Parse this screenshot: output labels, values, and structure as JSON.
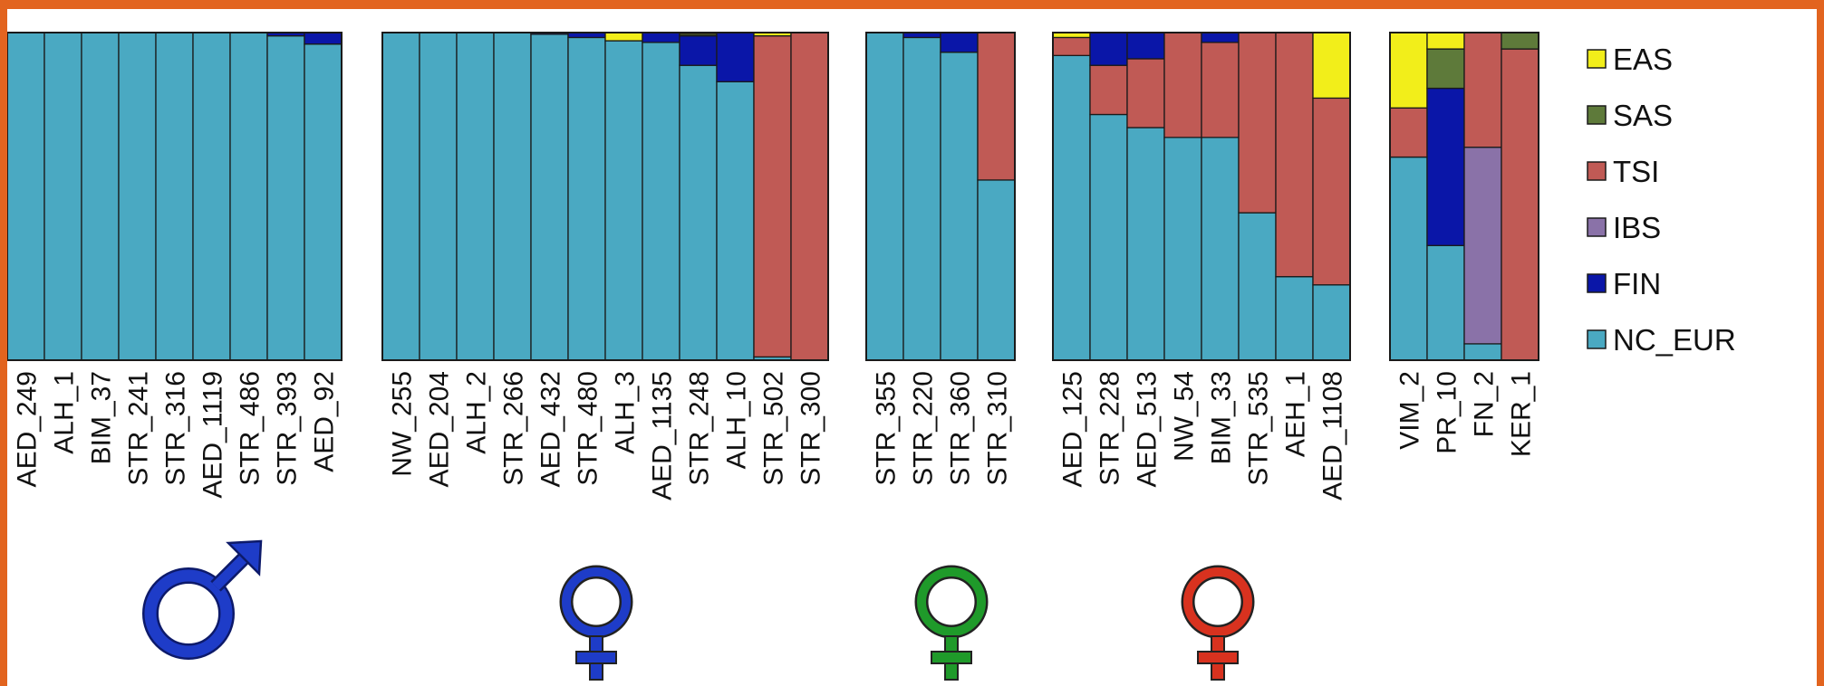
{
  "chart_data": {
    "type": "bar",
    "stacked": true,
    "normalized": true,
    "ylim": [
      0,
      1
    ],
    "grid": false,
    "legend_position": "right",
    "components": [
      {
        "name": "EAS",
        "color": "#f2ee1a"
      },
      {
        "name": "SAS",
        "color": "#5e7a3a"
      },
      {
        "name": "TSI",
        "color": "#c05a55"
      },
      {
        "name": "IBS",
        "color": "#8a72a8"
      },
      {
        "name": "FIN",
        "color": "#0a16a8"
      },
      {
        "name": "NC_EUR",
        "color": "#4aa9c2"
      }
    ],
    "stack_order": [
      "NC_EUR",
      "IBS",
      "TSI",
      "FIN",
      "SAS",
      "EAS"
    ],
    "panels": [
      {
        "symbol": "male",
        "symbol_color": "#1e3cc8",
        "samples": [
          {
            "label": "AED_249",
            "NC_EUR": 1.0
          },
          {
            "label": "ALH_1",
            "NC_EUR": 1.0
          },
          {
            "label": "BIM_37",
            "NC_EUR": 1.0
          },
          {
            "label": "STR_241",
            "NC_EUR": 1.0
          },
          {
            "label": "STR_316",
            "NC_EUR": 1.0
          },
          {
            "label": "AED_1119",
            "NC_EUR": 1.0
          },
          {
            "label": "STR_486",
            "NC_EUR": 1.0
          },
          {
            "label": "STR_393",
            "NC_EUR": 0.99,
            "FIN": 0.01
          },
          {
            "label": "AED_92",
            "NC_EUR": 0.965,
            "FIN": 0.035
          }
        ]
      },
      {
        "symbol": "female",
        "symbol_color": "#1e3cc8",
        "samples": [
          {
            "label": "NW_255",
            "NC_EUR": 1.0
          },
          {
            "label": "AED_204",
            "NC_EUR": 1.0
          },
          {
            "label": "ALH_2",
            "NC_EUR": 1.0
          },
          {
            "label": "STR_266",
            "NC_EUR": 1.0
          },
          {
            "label": "AED_432",
            "NC_EUR": 0.995,
            "FIN": 0.005
          },
          {
            "label": "STR_480",
            "NC_EUR": 0.985,
            "FIN": 0.015
          },
          {
            "label": "ALH_3",
            "NC_EUR": 0.975,
            "EAS": 0.025
          },
          {
            "label": "AED_1135",
            "NC_EUR": 0.97,
            "FIN": 0.03
          },
          {
            "label": "STR_248",
            "NC_EUR": 0.9,
            "FIN": 0.09,
            "SAS": 0.005,
            "EAS": 0.005
          },
          {
            "label": "ALH_10",
            "NC_EUR": 0.85,
            "FIN": 0.15
          },
          {
            "label": "STR_502",
            "NC_EUR": 0.01,
            "TSI": 0.98,
            "EAS": 0.01
          },
          {
            "label": "STR_300",
            "TSI": 1.0
          }
        ]
      },
      {
        "symbol": "female",
        "symbol_color": "#1f9a2a",
        "samples": [
          {
            "label": "STR_355",
            "NC_EUR": 1.0
          },
          {
            "label": "STR_220",
            "NC_EUR": 0.985,
            "FIN": 0.015
          },
          {
            "label": "STR_360",
            "NC_EUR": 0.94,
            "FIN": 0.06
          },
          {
            "label": "STR_310",
            "NC_EUR": 0.55,
            "TSI": 0.45
          }
        ]
      },
      {
        "symbol": "female",
        "symbol_color": "#d8321f",
        "samples": [
          {
            "label": "AED_125",
            "NC_EUR": 0.93,
            "TSI": 0.055,
            "EAS": 0.015
          },
          {
            "label": "STR_228",
            "NC_EUR": 0.75,
            "FIN": 0.1,
            "TSI": 0.15
          },
          {
            "label": "AED_513",
            "NC_EUR": 0.71,
            "FIN": 0.08,
            "TSI": 0.21
          },
          {
            "label": "NW_54",
            "NC_EUR": 0.68,
            "TSI": 0.32
          },
          {
            "label": "BIM_33",
            "NC_EUR": 0.68,
            "FIN": 0.03,
            "TSI": 0.29
          },
          {
            "label": "STR_535",
            "NC_EUR": 0.45,
            "TSI": 0.55
          },
          {
            "label": "AEH_1",
            "NC_EUR": 0.255,
            "TSI": 0.745
          },
          {
            "label": "AED_1108",
            "NC_EUR": 0.23,
            "TSI": 0.57,
            "EAS": 0.2
          }
        ]
      },
      {
        "symbol": "",
        "symbol_color": "",
        "samples": [
          {
            "label": "VIM_2",
            "NC_EUR": 0.62,
            "TSI": 0.15,
            "EAS": 0.23
          },
          {
            "label": "PR_10",
            "NC_EUR": 0.35,
            "FIN": 0.48,
            "SAS": 0.12,
            "EAS": 0.05
          },
          {
            "label": "FN_2",
            "NC_EUR": 0.05,
            "IBS": 0.6,
            "TSI": 0.35
          },
          {
            "label": "KER_1",
            "TSI": 0.95,
            "SAS": 0.05
          }
        ]
      }
    ]
  }
}
